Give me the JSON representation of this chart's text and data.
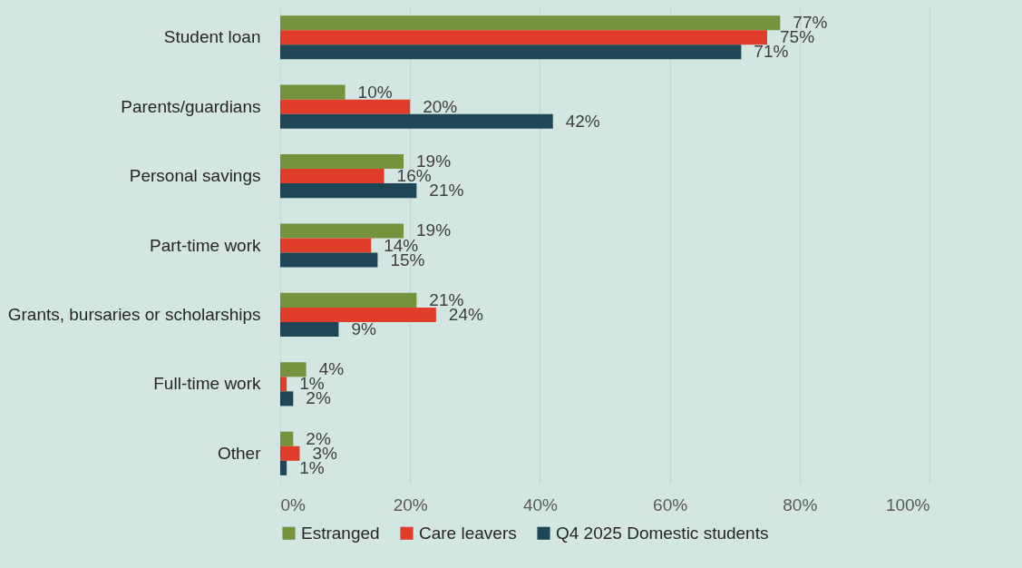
{
  "chart_data": {
    "type": "bar",
    "orientation": "horizontal",
    "categories": [
      "Student loan",
      "Parents/guardians",
      "Personal savings",
      "Part-time work",
      "Grants, bursaries or scholarships",
      "Full-time work",
      "Other"
    ],
    "series": [
      {
        "name": "Estranged",
        "color": "#76923c",
        "values": [
          77,
          10,
          19,
          19,
          21,
          4,
          2
        ],
        "value_labels": [
          "77%",
          "10%",
          "19%",
          "19%",
          "21%",
          "4%",
          "2%"
        ]
      },
      {
        "name": "Care leavers",
        "color": "#e03c2a",
        "values": [
          75,
          20,
          16,
          14,
          24,
          1,
          3
        ],
        "value_labels": [
          "75%",
          "20%",
          "16%",
          "14%",
          "24%",
          "1%",
          "3%"
        ]
      },
      {
        "name": "Q4 2025 Domestic students",
        "color": "#1f4657",
        "values": [
          71,
          42,
          21,
          15,
          9,
          2,
          1
        ],
        "value_labels": [
          "71%",
          "42%",
          "21%",
          "15%",
          "9%",
          "2%",
          "1%"
        ]
      }
    ],
    "xlim": [
      0,
      100
    ],
    "xticks": [
      {
        "value": 0,
        "label": "0%"
      },
      {
        "value": 20,
        "label": "20%"
      },
      {
        "value": 40,
        "label": "40%"
      },
      {
        "value": 60,
        "label": "60%"
      },
      {
        "value": 80,
        "label": "80%"
      },
      {
        "value": 100,
        "label": "100%"
      }
    ],
    "grid": "x",
    "legend": "bottom"
  }
}
